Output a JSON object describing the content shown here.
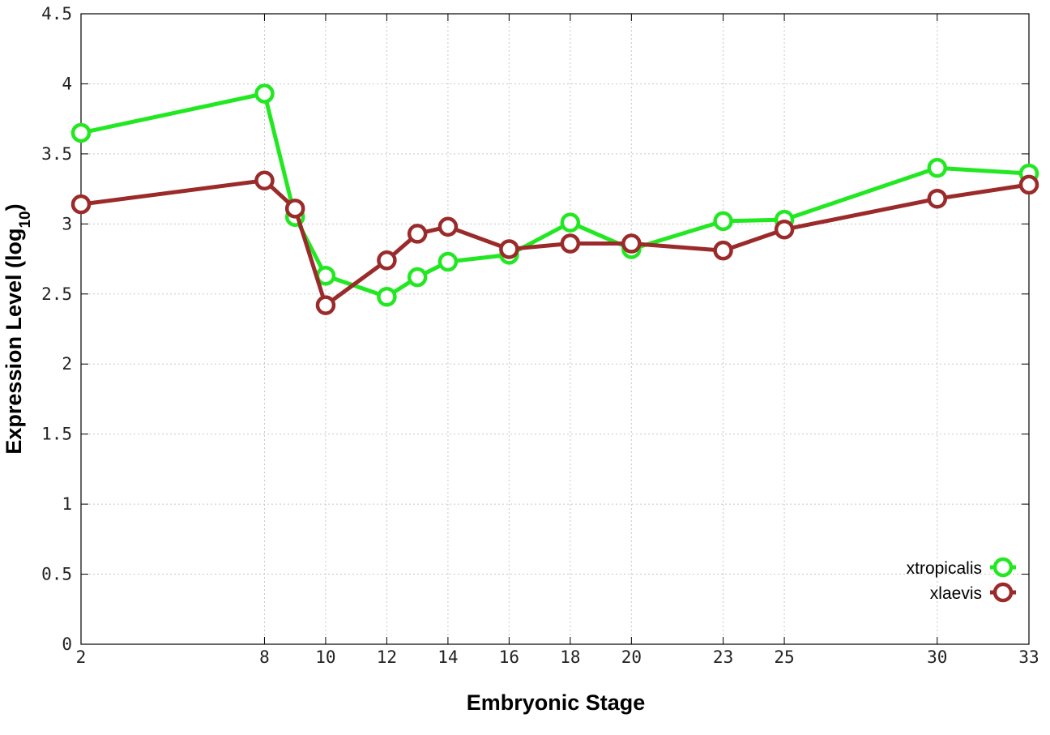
{
  "chart_data": {
    "type": "line",
    "title": "",
    "xlabel": "Embryonic Stage",
    "ylabel_main": "Expression Level (log",
    "ylabel_sub": "10",
    "ylabel_close": ")",
    "x": [
      2,
      8,
      9,
      10,
      12,
      13,
      14,
      16,
      18,
      20,
      23,
      25,
      30,
      33
    ],
    "x_tick_labels": [
      "2",
      "8",
      "10",
      "12",
      "14",
      "16",
      "18",
      "20",
      "23",
      "25",
      "30",
      "33"
    ],
    "y_tick_labels": [
      "0",
      "0.5",
      "1",
      "1.5",
      "2",
      "2.5",
      "3",
      "3.5",
      "4",
      "4.5"
    ],
    "ylim": [
      0,
      4.5
    ],
    "xlim": [
      2,
      33
    ],
    "grid": true,
    "legend_position": "bottom-right",
    "series": [
      {
        "name": "xtropicalis",
        "color": "#22e822",
        "values": [
          3.65,
          3.93,
          3.05,
          2.63,
          2.48,
          2.62,
          2.73,
          2.78,
          3.01,
          2.82,
          3.02,
          3.03,
          3.4,
          3.36
        ]
      },
      {
        "name": "xlaevis",
        "color": "#9b2a2a",
        "values": [
          3.14,
          3.31,
          3.11,
          2.42,
          2.74,
          2.93,
          2.98,
          2.82,
          2.86,
          2.86,
          2.81,
          2.96,
          3.18,
          3.28
        ]
      }
    ]
  }
}
